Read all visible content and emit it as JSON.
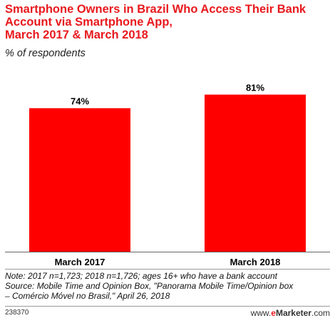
{
  "chart_data": {
    "type": "bar",
    "title": "Smartphone Owners in Brazil Who Access Their Bank Account via Smartphone App, March 2017 & March 2018",
    "subtitle": "% of respondents",
    "categories": [
      "March 2017",
      "March 2018"
    ],
    "values": [
      74,
      81
    ],
    "value_labels": [
      "74%",
      "81%"
    ],
    "ylim": [
      0,
      100
    ],
    "grid": false,
    "bar_color": "#ff0000"
  },
  "title_lines": [
    "Smartphone Owners in Brazil Who Access Their Bank",
    "Account via Smartphone App,",
    "March 2017 & March 2018"
  ],
  "notes": {
    "note": "Note: 2017 n=1,723; 2018 n=1,726; ages 16+ who have a bank account",
    "source_1": "Source: Mobile Time and Opinion Box, \"Panorama Mobile Time/Opinion box",
    "source_2": "– Comércio Móvel no Brasil,\" April 26, 2018"
  },
  "footer": {
    "chart_id": "238370",
    "brand_prefix": "www.",
    "brand_e": "e",
    "brand_name": "Marketer",
    "brand_suffix": ".com"
  }
}
